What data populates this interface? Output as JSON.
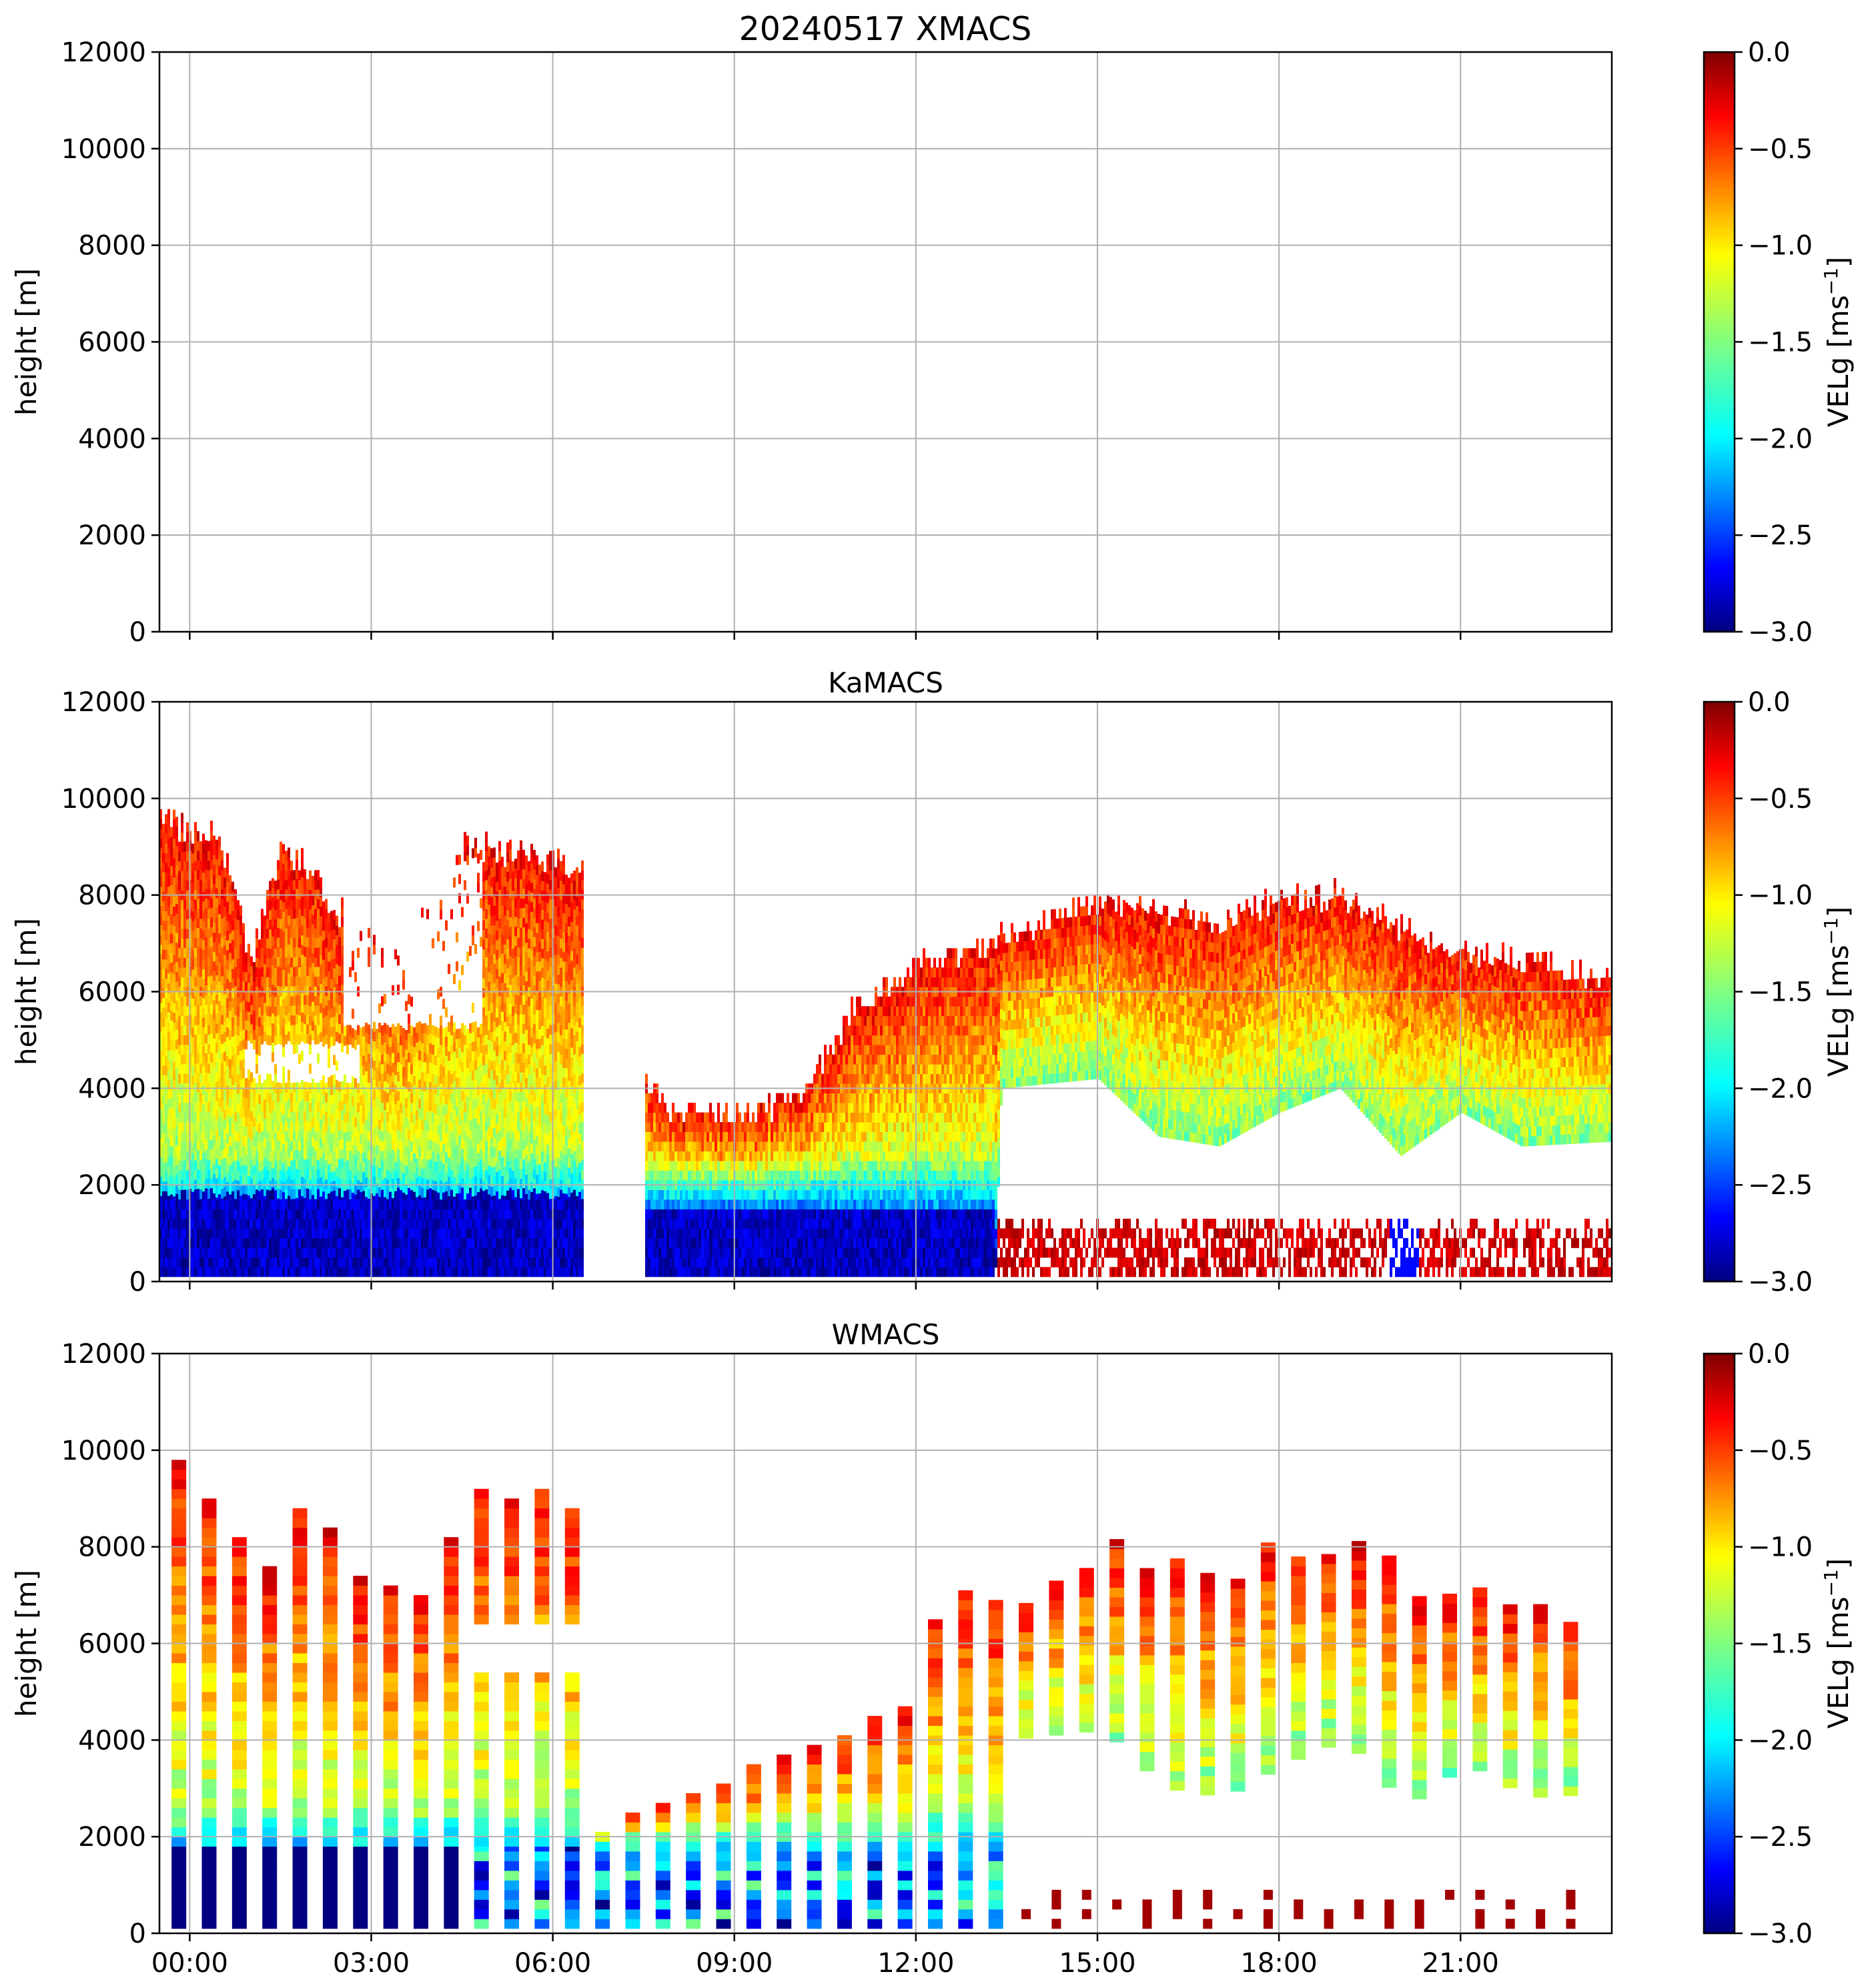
{
  "figure_title": "20240517 XMACS",
  "chart_data": [
    {
      "type": "heatmap",
      "name": "XMACS",
      "title": "20240517 XMACS",
      "ylabel": "height [m]",
      "ylim": [
        0,
        12000
      ],
      "yticks": [
        "0",
        "2000",
        "4000",
        "6000",
        "8000",
        "10000",
        "12000"
      ],
      "xlim_hours": [
        -0.5,
        23.5
      ],
      "xticks_hours": [
        0,
        3,
        6,
        9,
        12,
        15,
        18,
        21
      ],
      "xtick_labels": [],
      "grid": true,
      "has_data": false,
      "colorbar": {
        "label_base": "VELg [ms",
        "label_sup": "−1",
        "label_end": "]",
        "ticks": [
          "0.0",
          "−0.5",
          "−1.0",
          "−1.5",
          "−2.0",
          "−2.5",
          "−3.0"
        ],
        "range": [
          -3.0,
          0.0
        ],
        "colormap": "jet"
      }
    },
    {
      "type": "heatmap",
      "name": "KaMACS",
      "title": "KaMACS",
      "ylabel": "height [m]",
      "ylim": [
        0,
        12000
      ],
      "yticks": [
        "0",
        "2000",
        "4000",
        "6000",
        "8000",
        "10000",
        "12000"
      ],
      "xlim_hours": [
        -0.5,
        23.5
      ],
      "xticks_hours": [
        0,
        3,
        6,
        9,
        12,
        15,
        18,
        21
      ],
      "xtick_labels": [],
      "grid": true,
      "has_data": true,
      "pattern": "continuous",
      "gaps_hours": [
        [
          6.5,
          7.5
        ]
      ],
      "colorbar": {
        "label_base": "VELg [ms",
        "label_sup": "−1",
        "label_end": "]",
        "ticks": [
          "0.0",
          "−0.5",
          "−1.0",
          "−1.5",
          "−2.0",
          "−2.5",
          "−3.0"
        ],
        "range": [
          -3.0,
          0.0
        ],
        "colormap": "jet"
      }
    },
    {
      "type": "heatmap",
      "name": "WMACS",
      "title": "WMACS",
      "ylabel": "height [m]",
      "ylim": [
        0,
        12000
      ],
      "yticks": [
        "0",
        "2000",
        "4000",
        "6000",
        "8000",
        "10000",
        "12000"
      ],
      "xlim_hours": [
        -0.5,
        23.5
      ],
      "xticks_hours": [
        0,
        3,
        6,
        9,
        12,
        15,
        18,
        21
      ],
      "xtick_labels": [
        "00:00",
        "03:00",
        "06:00",
        "09:00",
        "12:00",
        "15:00",
        "18:00",
        "21:00"
      ],
      "grid": true,
      "has_data": true,
      "pattern": "strips",
      "strip_interval_hours": 0.5,
      "colorbar": {
        "label_base": "VELg [ms",
        "label_sup": "−1",
        "label_end": "]",
        "ticks": [
          "0.0",
          "−0.5",
          "−1.0",
          "−1.5",
          "−2.0",
          "−2.5",
          "−3.0"
        ],
        "range": [
          -3.0,
          0.0
        ],
        "colormap": "jet"
      }
    }
  ]
}
